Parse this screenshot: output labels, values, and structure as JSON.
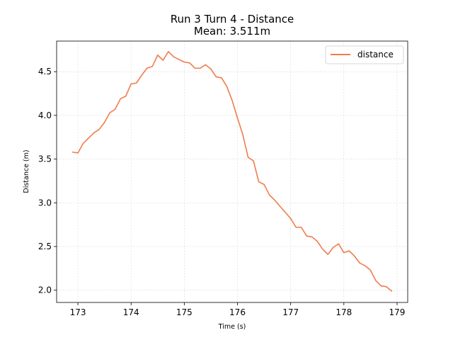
{
  "chart_data": {
    "type": "line",
    "title": "Run 3 Turn 4 - Distance",
    "subtitle": "Mean: 3.511m",
    "xlabel": "Time (s)",
    "ylabel": "Distance (m)",
    "xlim": [
      172.6,
      179.2
    ],
    "ylim": [
      1.86,
      4.85
    ],
    "xticks": [
      173,
      174,
      175,
      176,
      177,
      178,
      179
    ],
    "yticks": [
      2.0,
      2.5,
      3.0,
      3.5,
      4.0,
      4.5
    ],
    "grid": true,
    "legend_position": "top-right",
    "series": [
      {
        "name": "distance",
        "color": "#f07b4e",
        "x": [
          172.9,
          173.0,
          173.1,
          173.2,
          173.3,
          173.4,
          173.5,
          173.6,
          173.7,
          173.8,
          173.9,
          174.0,
          174.1,
          174.2,
          174.3,
          174.4,
          174.5,
          174.6,
          174.7,
          174.8,
          174.9,
          175.0,
          175.1,
          175.2,
          175.3,
          175.4,
          175.5,
          175.6,
          175.7,
          175.8,
          175.9,
          176.0,
          176.1,
          176.2,
          176.3,
          176.4,
          176.5,
          176.6,
          176.7,
          176.8,
          176.9,
          177.0,
          177.1,
          177.2,
          177.3,
          177.4,
          177.5,
          177.6,
          177.7,
          177.8,
          177.9,
          178.0,
          178.1,
          178.2,
          178.3,
          178.4,
          178.5,
          178.6,
          178.7,
          178.8,
          178.9
        ],
        "y": [
          3.58,
          3.57,
          3.68,
          3.74,
          3.8,
          3.84,
          3.92,
          4.03,
          4.07,
          4.19,
          4.22,
          4.36,
          4.37,
          4.46,
          4.54,
          4.56,
          4.69,
          4.63,
          4.73,
          4.67,
          4.64,
          4.61,
          4.6,
          4.54,
          4.54,
          4.58,
          4.53,
          4.44,
          4.43,
          4.33,
          4.17,
          3.97,
          3.78,
          3.52,
          3.48,
          3.24,
          3.21,
          3.09,
          3.03,
          2.96,
          2.89,
          2.82,
          2.72,
          2.72,
          2.62,
          2.61,
          2.56,
          2.47,
          2.41,
          2.49,
          2.53,
          2.43,
          2.45,
          2.39,
          2.31,
          2.28,
          2.23,
          2.11,
          2.05,
          2.04,
          1.99
        ]
      }
    ]
  }
}
